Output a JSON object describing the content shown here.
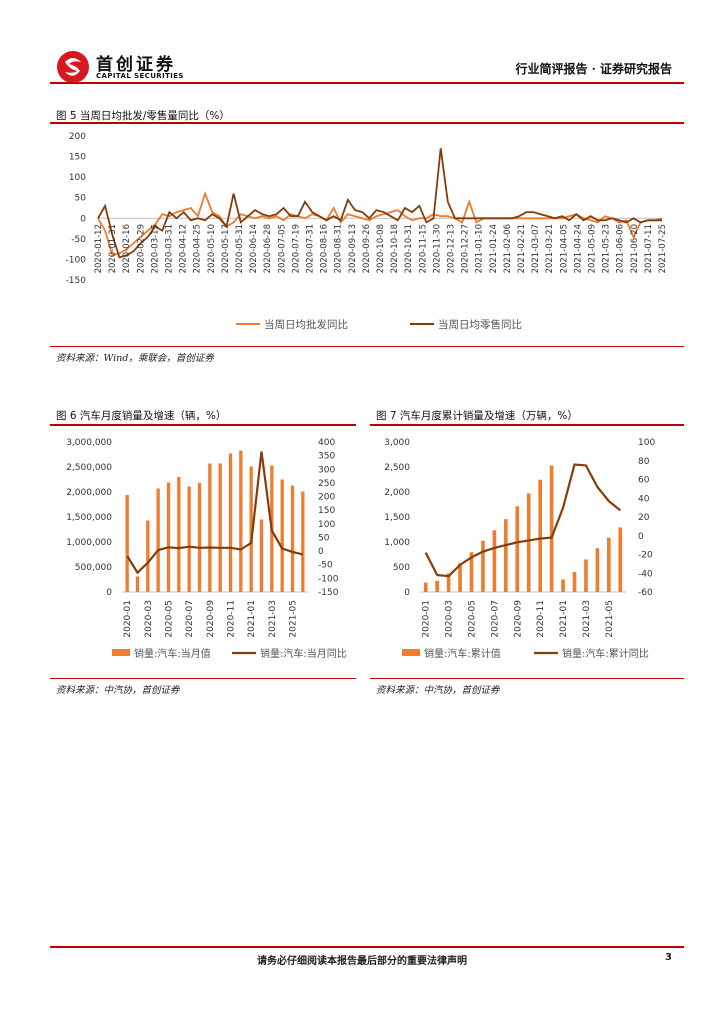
{
  "header": {
    "brand_cn": "首创证券",
    "brand_en": "CAPITAL SECURITIES",
    "right_title": "行业简评报告 · 证券研究报告"
  },
  "figure5": {
    "title": "图 5 当周日均批发/零售量同比（%）",
    "source": "资料来源：Wind，乘联会，首创证券",
    "chart_data": {
      "type": "line",
      "ylim": [
        -150,
        200
      ],
      "yticks": [
        "200",
        "150",
        "100",
        "50",
        "0",
        "-50",
        "-100",
        "-150"
      ],
      "xtick_labels": [
        "2020-01-12",
        "2020-01-31",
        "2020-02-16",
        "2020-02-29",
        "2020-03-15",
        "2020-03-31",
        "2020-04-12",
        "2020-04-25",
        "2020-05-10",
        "2020-05-17",
        "2020-05-31",
        "2020-06-14",
        "2020-06-28",
        "2020-07-05",
        "2020-07-19",
        "2020-07-31",
        "2020-08-16",
        "2020-08-31",
        "2020-09-13",
        "2020-09-26",
        "2020-10-08",
        "2020-10-18",
        "2020-10-31",
        "2020-11-15",
        "2020-11-30",
        "2020-12-13",
        "2020-12-27",
        "2021-01-10",
        "2021-01-24",
        "2021-02-06",
        "2021-02-21",
        "2021-03-07",
        "2021-03-21",
        "2021-04-05",
        "2021-04-24",
        "2021-05-09",
        "2021-05-23",
        "2021-06-06",
        "2021-06-20",
        "2021-07-11",
        "2021-07-25"
      ],
      "series": [
        {
          "name": "当周日均批发同比",
          "color": "#ed7d31",
          "values": [
            0,
            -30,
            -90,
            -85,
            -75,
            -60,
            -45,
            -30,
            -15,
            10,
            5,
            15,
            20,
            25,
            5,
            60,
            15,
            5,
            -20,
            -10,
            10,
            5,
            0,
            5,
            0,
            5,
            -5,
            10,
            5,
            0,
            10,
            5,
            -5,
            25,
            -10,
            10,
            5,
            0,
            -5,
            5,
            10,
            15,
            20,
            5,
            -5,
            0,
            0,
            10,
            5,
            5,
            0,
            -10,
            40,
            -10,
            0,
            0,
            0,
            0,
            0,
            0,
            0,
            0,
            0,
            0,
            0,
            0,
            5,
            10,
            0,
            -5,
            -10,
            5,
            0,
            -10,
            -5,
            -45,
            -10,
            -5,
            -5,
            0
          ]
        },
        {
          "name": "当周日均零售同比",
          "color": "#843c0c",
          "values": [
            0,
            30,
            -40,
            -95,
            -90,
            -80,
            -60,
            -45,
            -20,
            -30,
            15,
            0,
            15,
            -5,
            0,
            -5,
            10,
            0,
            -20,
            60,
            -10,
            5,
            20,
            10,
            5,
            10,
            25,
            5,
            5,
            40,
            15,
            5,
            -5,
            5,
            -5,
            45,
            20,
            15,
            0,
            20,
            15,
            5,
            -5,
            25,
            15,
            30,
            -10,
            0,
            170,
            40,
            0,
            0,
            0,
            0,
            0,
            0,
            0,
            0,
            0,
            5,
            15,
            15,
            10,
            5,
            0,
            5,
            -5,
            10,
            -5,
            5,
            -5,
            -5,
            0,
            -5,
            -10,
            0,
            -10,
            -5,
            -5,
            -5
          ]
        }
      ]
    }
  },
  "figure6": {
    "title": "图 6 汽车月度销量及增速（辆，%）",
    "source": "资料来源：中汽协，首创证券",
    "chart_data": {
      "type": "bar+line",
      "categories": [
        "2020-01",
        "2020-02",
        "2020-03",
        "2020-04",
        "2020-05",
        "2020-06",
        "2020-07",
        "2020-08",
        "2020-09",
        "2020-10",
        "2020-11",
        "2020-12",
        "2021-01",
        "2021-02",
        "2021-03",
        "2021-04",
        "2021-05",
        "2021-06"
      ],
      "xtick_labels": [
        "2020-01",
        "2020-03",
        "2020-05",
        "2020-07",
        "2020-09",
        "2020-11",
        "2021-01",
        "2021-03",
        "2021-05"
      ],
      "bar_series": {
        "name": "销量:汽车:当月值",
        "color": "#ed7d31",
        "values": [
          1940000,
          310000,
          1430000,
          2070000,
          2190000,
          2300000,
          2110000,
          2180000,
          2570000,
          2570000,
          2770000,
          2830000,
          2510000,
          1450000,
          2530000,
          2250000,
          2130000,
          2010000
        ]
      },
      "line_series": {
        "name": "销量:汽车:当月同比",
        "color": "#843c0c",
        "values": [
          -18,
          -79,
          -43,
          4,
          14,
          11,
          16,
          12,
          13,
          12,
          12,
          6,
          30,
          365,
          75,
          9,
          -3,
          -12
        ]
      },
      "left_ylim": [
        0,
        3000000
      ],
      "left_yticks": [
        "3,000,000",
        "2,500,000",
        "2,000,000",
        "1,500,000",
        "1,000,000",
        "500,000",
        "0"
      ],
      "right_ylim": [
        -150,
        400
      ],
      "right_yticks": [
        "400",
        "350",
        "300",
        "250",
        "200",
        "150",
        "100",
        "50",
        "0",
        "-50",
        "-100",
        "-150"
      ]
    }
  },
  "figure7": {
    "title": "图 7 汽车月度累计销量及增速（万辆，%）",
    "source": "资料来源：中汽协，首创证券",
    "chart_data": {
      "type": "bar+line",
      "categories": [
        "2020-01",
        "2020-02",
        "2020-03",
        "2020-04",
        "2020-05",
        "2020-06",
        "2020-07",
        "2020-08",
        "2020-09",
        "2020-10",
        "2020-11",
        "2020-12",
        "2021-01",
        "2021-02",
        "2021-03",
        "2021-04",
        "2021-05",
        "2021-06"
      ],
      "xtick_labels": [
        "2020-01",
        "2020-03",
        "2020-05",
        "2020-07",
        "2020-09",
        "2020-11",
        "2021-01",
        "2021-03",
        "2021-05"
      ],
      "bar_series": {
        "name": "销量:汽车:累计值",
        "color": "#ed7d31",
        "values": [
          190,
          225,
          370,
          575,
          795,
          1025,
          1235,
          1455,
          1715,
          1970,
          2245,
          2530,
          250,
          400,
          650,
          875,
          1085,
          1290
        ]
      },
      "line_series": {
        "name": "销量:汽车:累计同比",
        "color": "#843c0c",
        "values": [
          -18,
          -42,
          -43,
          -31,
          -23,
          -17,
          -13,
          -10,
          -7,
          -5,
          -3,
          -2,
          30,
          76,
          75,
          52,
          37,
          27
        ]
      },
      "left_ylim": [
        0,
        3000
      ],
      "left_yticks": [
        "3,000",
        "2,500",
        "2,000",
        "1,500",
        "1,000",
        "500",
        "0"
      ],
      "right_ylim": [
        -60,
        100
      ],
      "right_yticks": [
        "100",
        "80",
        "60",
        "40",
        "20",
        "0",
        "-20",
        "-40",
        "-60"
      ]
    }
  },
  "footer": {
    "disclaimer": "请务必仔细阅读本报告最后部分的重要法律声明",
    "page_number": "3"
  }
}
